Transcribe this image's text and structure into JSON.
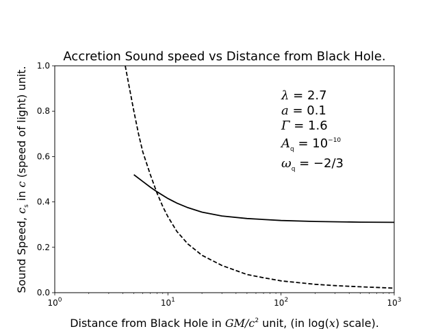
{
  "chart_data": {
    "type": "line",
    "title": "Accretion Sound speed vs Distance from Black Hole.",
    "xlabel_parts": [
      "Distance from Black Hole in ",
      "GM/c",
      "2",
      " unit, (in log(",
      "x",
      ") scale)."
    ],
    "ylabel_parts": [
      "Sound Speed, ",
      "c",
      "s",
      " in ",
      "c",
      " (speed of light) unit."
    ],
    "x_scale": "log",
    "xlim": [
      1,
      1000
    ],
    "ylim": [
      0.0,
      1.0
    ],
    "x_ticks": [
      {
        "value": 1,
        "base": "10",
        "exp": "0"
      },
      {
        "value": 10,
        "base": "10",
        "exp": "1"
      },
      {
        "value": 100,
        "base": "10",
        "exp": "2"
      },
      {
        "value": 1000,
        "base": "10",
        "exp": "3"
      }
    ],
    "y_ticks": [
      "0.0",
      "0.2",
      "0.4",
      "0.6",
      "0.8",
      "1.0"
    ],
    "grid": false,
    "annotations": [
      {
        "sym": "λ",
        "sub": "",
        "rhs": " = 2.7",
        "sup": ""
      },
      {
        "sym": "a",
        "sub": "",
        "rhs": " = 0.1",
        "sup": ""
      },
      {
        "sym": "Γ",
        "sub": "",
        "rhs": " = 1.6",
        "sup": ""
      },
      {
        "sym": "A",
        "sub": "q",
        "rhs": " = 10",
        "sup": "−10"
      },
      {
        "sym": "ω",
        "sub": "q",
        "rhs": " = −2/3",
        "sup": ""
      }
    ],
    "series": [
      {
        "style": "solid",
        "color": "#000000",
        "x": [
          5,
          6,
          7,
          8,
          10,
          12,
          15,
          20,
          30,
          50,
          100,
          200,
          500,
          1000
        ],
        "y": [
          0.52,
          0.49,
          0.465,
          0.445,
          0.415,
          0.395,
          0.375,
          0.355,
          0.338,
          0.327,
          0.318,
          0.314,
          0.311,
          0.31
        ]
      },
      {
        "style": "dashed",
        "color": "#000000",
        "x": [
          4.2,
          4.5,
          5,
          5.5,
          6,
          7,
          8,
          9,
          10,
          12,
          15,
          20,
          30,
          50,
          70,
          100,
          200,
          300,
          500,
          1000
        ],
        "y": [
          1.0,
          0.92,
          0.8,
          0.7,
          0.62,
          0.52,
          0.44,
          0.38,
          0.335,
          0.27,
          0.215,
          0.165,
          0.12,
          0.08,
          0.066,
          0.052,
          0.037,
          0.031,
          0.026,
          0.02
        ]
      }
    ]
  }
}
